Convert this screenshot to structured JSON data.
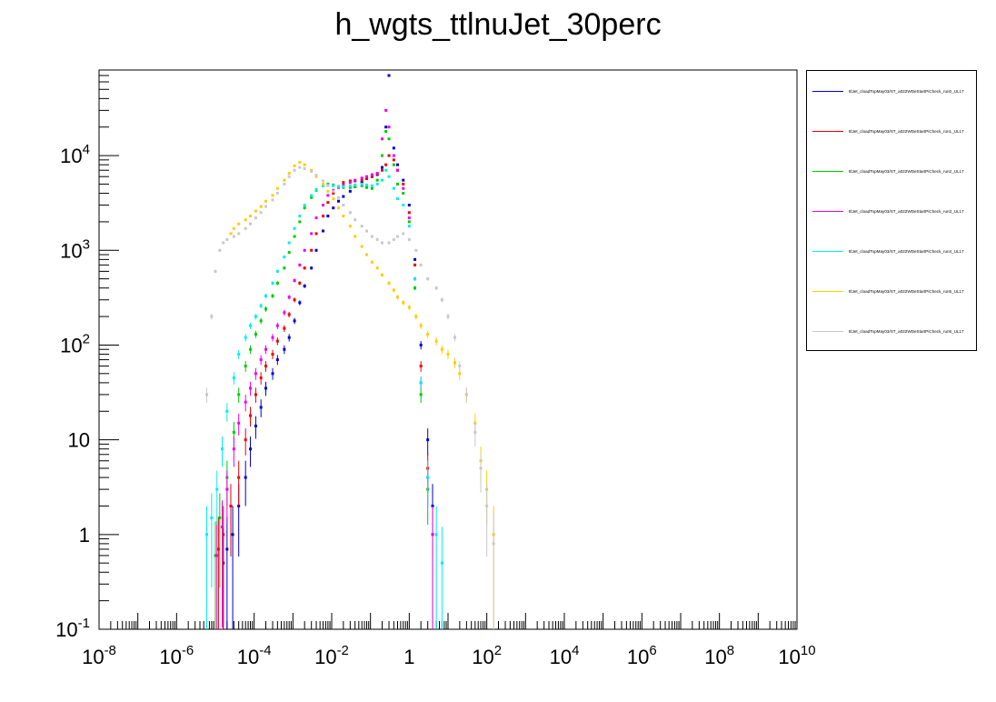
{
  "chart_data": {
    "type": "scatter",
    "title": "h_wgts_ttlnuJet_30perc",
    "xlabel": "",
    "ylabel": "",
    "xscale": "log",
    "yscale": "log",
    "xlim": [
      1e-08,
      10000000000.0
    ],
    "ylim": [
      0.1,
      80000
    ],
    "x_ticks": [
      "10^-8",
      "10^-6",
      "10^-4",
      "10^-2",
      "1",
      "10^2",
      "10^4",
      "10^6",
      "10^8",
      "10^10"
    ],
    "y_ticks": [
      "10^-1",
      "1",
      "10",
      "10^2",
      "10^3",
      "10^4"
    ],
    "grid": false,
    "legend_position": "top-right outside plot",
    "error_bars": true,
    "series": [
      {
        "name": "ttlJet_cloadTopMay03/ST_a022WDeStartPiCheck_run0_UL17",
        "color": "#0000cc",
        "points": [
          [
            1.6e-05,
            0.5
          ],
          [
            2e-05,
            0.7
          ],
          [
            2.8e-05,
            1.0
          ],
          [
            4e-05,
            2
          ],
          [
            6e-05,
            4
          ],
          [
            8e-05,
            8
          ],
          [
            0.00011,
            14
          ],
          [
            0.00015,
            22
          ],
          [
            0.0002,
            35
          ],
          [
            0.0003,
            50
          ],
          [
            0.0004,
            70
          ],
          [
            0.0006,
            90
          ],
          [
            0.0008,
            120
          ],
          [
            0.0011,
            180
          ],
          [
            0.0015,
            280
          ],
          [
            0.002,
            420
          ],
          [
            0.003,
            650
          ],
          [
            0.004,
            1000
          ],
          [
            0.006,
            1600
          ],
          [
            0.008,
            2300
          ],
          [
            0.011,
            2800
          ],
          [
            0.015,
            3300
          ],
          [
            0.02,
            3700
          ],
          [
            0.03,
            4200
          ],
          [
            0.04,
            4700
          ],
          [
            0.06,
            5200
          ],
          [
            0.08,
            5700
          ],
          [
            0.11,
            6000
          ],
          [
            0.15,
            6300
          ],
          [
            0.2,
            7500
          ],
          [
            0.25,
            20000
          ],
          [
            0.3,
            70000
          ],
          [
            0.4,
            12000
          ],
          [
            0.5,
            8000
          ],
          [
            0.7,
            5500
          ],
          [
            1.0,
            3000
          ],
          [
            1.4,
            800
          ],
          [
            2.0,
            100
          ],
          [
            3.0,
            10
          ],
          [
            4.0,
            2
          ]
        ]
      },
      {
        "name": "ttlJet_cloadTopMay03/ST_a022WDeStartPiCheck_run1_UL17",
        "color": "#ee0000",
        "points": [
          [
            1.2e-05,
            0.7
          ],
          [
            1.6e-05,
            1
          ],
          [
            2.5e-05,
            2
          ],
          [
            4e-05,
            4
          ],
          [
            6e-05,
            10
          ],
          [
            8e-05,
            18
          ],
          [
            0.00011,
            30
          ],
          [
            0.00015,
            45
          ],
          [
            0.0002,
            60
          ],
          [
            0.0003,
            80
          ],
          [
            0.0004,
            110
          ],
          [
            0.0006,
            150
          ],
          [
            0.0008,
            210
          ],
          [
            0.0011,
            300
          ],
          [
            0.0015,
            450
          ],
          [
            0.002,
            650
          ],
          [
            0.003,
            1000
          ],
          [
            0.004,
            1500
          ],
          [
            0.006,
            2300
          ],
          [
            0.008,
            3200
          ],
          [
            0.011,
            4000
          ],
          [
            0.015,
            4700
          ],
          [
            0.02,
            5200
          ],
          [
            0.03,
            5400
          ],
          [
            0.04,
            5400
          ],
          [
            0.06,
            5500
          ],
          [
            0.08,
            5700
          ],
          [
            0.11,
            6000
          ],
          [
            0.15,
            6400
          ],
          [
            0.2,
            7000
          ],
          [
            0.25,
            8000
          ],
          [
            0.3,
            10000
          ],
          [
            0.4,
            9000
          ],
          [
            0.5,
            7000
          ],
          [
            0.7,
            5000
          ],
          [
            1.0,
            2500
          ],
          [
            1.4,
            700
          ],
          [
            2.0,
            60
          ],
          [
            3.0,
            5
          ],
          [
            4.0,
            1
          ]
        ]
      },
      {
        "name": "ttlJet_cloadTopMay03/ST_a022WDeStartPiCheck_run2_UL17",
        "color": "#00cc00",
        "points": [
          [
            1e-05,
            0.6
          ],
          [
            1.3e-05,
            1.5
          ],
          [
            2e-05,
            4
          ],
          [
            3e-05,
            12
          ],
          [
            4e-05,
            30
          ],
          [
            6e-05,
            60
          ],
          [
            8e-05,
            90
          ],
          [
            0.00011,
            130
          ],
          [
            0.00015,
            180
          ],
          [
            0.0002,
            240
          ],
          [
            0.0003,
            330
          ],
          [
            0.0004,
            450
          ],
          [
            0.0006,
            650
          ],
          [
            0.0008,
            950
          ],
          [
            0.0011,
            1400
          ],
          [
            0.0015,
            2000
          ],
          [
            0.002,
            2800
          ],
          [
            0.003,
            3600
          ],
          [
            0.004,
            4300
          ],
          [
            0.006,
            4800
          ],
          [
            0.008,
            5000
          ],
          [
            0.011,
            4900
          ],
          [
            0.015,
            4700
          ],
          [
            0.02,
            4600
          ],
          [
            0.03,
            4600
          ],
          [
            0.04,
            4700
          ],
          [
            0.06,
            4800
          ],
          [
            0.08,
            4600
          ],
          [
            0.11,
            4500
          ],
          [
            0.15,
            5500
          ],
          [
            0.2,
            10000
          ],
          [
            0.25,
            18000
          ],
          [
            0.3,
            15000
          ],
          [
            0.4,
            8000
          ],
          [
            0.5,
            5000
          ],
          [
            0.7,
            4000
          ],
          [
            1.0,
            2000
          ],
          [
            1.4,
            400
          ],
          [
            2.0,
            30
          ],
          [
            3.0,
            3
          ],
          [
            4.0,
            1
          ]
        ]
      },
      {
        "name": "ttlJet_cloadTopMay03/ST_a022WDeStartPiCheck_run3_UL17",
        "color": "#ee00ee",
        "points": [
          [
            1.1e-05,
            0.6
          ],
          [
            1.5e-05,
            1.2
          ],
          [
            2e-05,
            3
          ],
          [
            3e-05,
            8
          ],
          [
            4e-05,
            15
          ],
          [
            6e-05,
            25
          ],
          [
            8e-05,
            35
          ],
          [
            0.00011,
            50
          ],
          [
            0.00015,
            70
          ],
          [
            0.0002,
            90
          ],
          [
            0.0003,
            120
          ],
          [
            0.0004,
            160
          ],
          [
            0.0006,
            220
          ],
          [
            0.0008,
            320
          ],
          [
            0.0011,
            480
          ],
          [
            0.0015,
            700
          ],
          [
            0.002,
            1000
          ],
          [
            0.003,
            1500
          ],
          [
            0.004,
            2200
          ],
          [
            0.006,
            3000
          ],
          [
            0.008,
            3800
          ],
          [
            0.011,
            4300
          ],
          [
            0.015,
            4600
          ],
          [
            0.02,
            4900
          ],
          [
            0.03,
            5200
          ],
          [
            0.04,
            5500
          ],
          [
            0.06,
            5800
          ],
          [
            0.08,
            6000
          ],
          [
            0.11,
            6300
          ],
          [
            0.15,
            6500
          ],
          [
            0.2,
            15000
          ],
          [
            0.25,
            30000
          ],
          [
            0.3,
            20000
          ],
          [
            0.4,
            10000
          ],
          [
            0.5,
            7000
          ],
          [
            0.7,
            4500
          ],
          [
            1.0,
            2200
          ],
          [
            1.4,
            500
          ],
          [
            2.0,
            40
          ],
          [
            3.0,
            4
          ],
          [
            4.0,
            1
          ]
        ]
      },
      {
        "name": "ttlJet_cloadTopMay03/ST_a022WDeStartPiCheck_run4_UL17",
        "color": "#00eeee",
        "points": [
          [
            6e-06,
            1
          ],
          [
            8e-06,
            1.5
          ],
          [
            1.1e-05,
            3
          ],
          [
            1.5e-05,
            8
          ],
          [
            2e-05,
            20
          ],
          [
            3e-05,
            45
          ],
          [
            4e-05,
            80
          ],
          [
            6e-05,
            120
          ],
          [
            8e-05,
            160
          ],
          [
            0.00011,
            200
          ],
          [
            0.00015,
            260
          ],
          [
            0.0002,
            330
          ],
          [
            0.0003,
            450
          ],
          [
            0.0004,
            600
          ],
          [
            0.0006,
            850
          ],
          [
            0.0008,
            1200
          ],
          [
            0.0011,
            1700
          ],
          [
            0.0015,
            2300
          ],
          [
            0.002,
            3000
          ],
          [
            0.003,
            3800
          ],
          [
            0.004,
            4400
          ],
          [
            0.006,
            4800
          ],
          [
            0.008,
            4900
          ],
          [
            0.011,
            4800
          ],
          [
            0.015,
            4700
          ],
          [
            0.02,
            4700
          ],
          [
            0.03,
            4800
          ],
          [
            0.04,
            4900
          ],
          [
            0.06,
            5000
          ],
          [
            0.08,
            4900
          ],
          [
            0.11,
            4800
          ],
          [
            0.15,
            5000
          ],
          [
            0.2,
            5500
          ],
          [
            0.25,
            7000
          ],
          [
            0.3,
            6000
          ],
          [
            0.4,
            4500
          ],
          [
            0.5,
            3500
          ],
          [
            0.7,
            3000
          ],
          [
            1.0,
            1800
          ],
          [
            1.4,
            500
          ],
          [
            2.0,
            40
          ],
          [
            3.0,
            4
          ],
          [
            5.0,
            1
          ],
          [
            7.0,
            0.5
          ]
        ]
      },
      {
        "name": "ttlJet_cloadTopMay03/ST_a022WDeStartPiCheck_run5_UL17",
        "color": "#ffcc00",
        "points": [
          [
            2.5e-05,
            1500
          ],
          [
            3e-05,
            1700
          ],
          [
            4e-05,
            1900
          ],
          [
            6e-05,
            2100
          ],
          [
            8e-05,
            2300
          ],
          [
            0.00011,
            2600
          ],
          [
            0.00015,
            2900
          ],
          [
            0.0002,
            3300
          ],
          [
            0.0003,
            3800
          ],
          [
            0.0004,
            4500
          ],
          [
            0.0006,
            5500
          ],
          [
            0.0008,
            6500
          ],
          [
            0.0011,
            7800
          ],
          [
            0.0015,
            8500
          ],
          [
            0.002,
            8000
          ],
          [
            0.003,
            7000
          ],
          [
            0.004,
            6000
          ],
          [
            0.006,
            5000
          ],
          [
            0.008,
            4200
          ],
          [
            0.011,
            3500
          ],
          [
            0.015,
            2800
          ],
          [
            0.02,
            2300
          ],
          [
            0.03,
            1800
          ],
          [
            0.04,
            1400
          ],
          [
            0.06,
            1100
          ],
          [
            0.08,
            900
          ],
          [
            0.11,
            750
          ],
          [
            0.15,
            650
          ],
          [
            0.2,
            550
          ],
          [
            0.3,
            450
          ],
          [
            0.4,
            380
          ],
          [
            0.5,
            320
          ],
          [
            0.7,
            280
          ],
          [
            1.0,
            250
          ],
          [
            1.5,
            200
          ],
          [
            2,
            160
          ],
          [
            3,
            130
          ],
          [
            5,
            110
          ],
          [
            7,
            90
          ],
          [
            10,
            80
          ],
          [
            15,
            65
          ],
          [
            20,
            50
          ],
          [
            30,
            30
          ],
          [
            50,
            15
          ],
          [
            70,
            6
          ],
          [
            100,
            3
          ],
          [
            150,
            1
          ]
        ]
      },
      {
        "name": "ttlJet_cloadTopMay03/ST_a022WDeStartPiCheck_run6_UL17",
        "color": "#c8c8c8",
        "points": [
          [
            6e-06,
            30
          ],
          [
            8e-06,
            200
          ],
          [
            1e-05,
            600
          ],
          [
            1.3e-05,
            1000
          ],
          [
            1.6e-05,
            1200
          ],
          [
            2e-05,
            1300
          ],
          [
            3e-05,
            1400
          ],
          [
            4e-05,
            1500
          ],
          [
            6e-05,
            1700
          ],
          [
            8e-05,
            1900
          ],
          [
            0.00011,
            2200
          ],
          [
            0.00015,
            2500
          ],
          [
            0.0002,
            2900
          ],
          [
            0.0003,
            3400
          ],
          [
            0.0004,
            4000
          ],
          [
            0.0006,
            5000
          ],
          [
            0.0008,
            6000
          ],
          [
            0.0011,
            7000
          ],
          [
            0.0015,
            7500
          ],
          [
            0.002,
            7300
          ],
          [
            0.003,
            6800
          ],
          [
            0.004,
            6200
          ],
          [
            0.006,
            5400
          ],
          [
            0.008,
            4800
          ],
          [
            0.011,
            4200
          ],
          [
            0.015,
            3600
          ],
          [
            0.02,
            3000
          ],
          [
            0.03,
            2500
          ],
          [
            0.04,
            2100
          ],
          [
            0.06,
            1800
          ],
          [
            0.08,
            1600
          ],
          [
            0.11,
            1400
          ],
          [
            0.15,
            1300
          ],
          [
            0.2,
            1200
          ],
          [
            0.3,
            1200
          ],
          [
            0.4,
            1300
          ],
          [
            0.5,
            1400
          ],
          [
            0.7,
            1500
          ],
          [
            1.0,
            1300
          ],
          [
            1.5,
            1000
          ],
          [
            2,
            700
          ],
          [
            3,
            500
          ],
          [
            5,
            400
          ],
          [
            7,
            300
          ],
          [
            10,
            200
          ],
          [
            15,
            120
          ],
          [
            20,
            60
          ],
          [
            30,
            30
          ],
          [
            50,
            12
          ],
          [
            70,
            5
          ],
          [
            100,
            2
          ],
          [
            150,
            0.8
          ]
        ]
      }
    ]
  }
}
